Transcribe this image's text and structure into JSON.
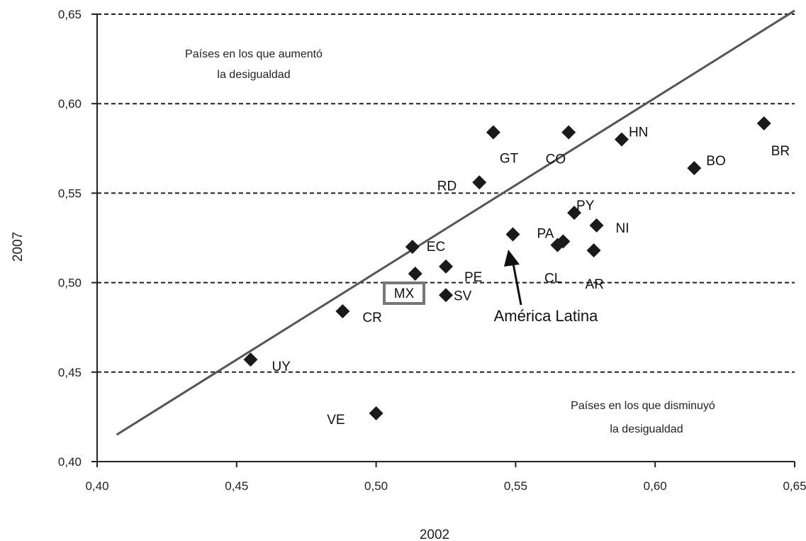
{
  "chart_data": {
    "type": "scatter",
    "xlabel": "2002",
    "ylabel": "2007",
    "xlim": [
      0.4,
      0.65
    ],
    "ylim": [
      0.4,
      0.65
    ],
    "x_ticks": [
      "0,40",
      "0,45",
      "0,50",
      "0,55",
      "0,60",
      "0,65"
    ],
    "y_ticks": [
      "0,40",
      "0,45",
      "0,50",
      "0,55",
      "0,60",
      "0,65"
    ],
    "grid": "horizontal-dashed",
    "reference_line": {
      "x": [
        0.407,
        0.65
      ],
      "y": [
        0.415,
        0.652
      ]
    },
    "points": [
      {
        "label": "UY",
        "x": 0.455,
        "y": 0.457
      },
      {
        "label": "VE",
        "x": 0.5,
        "y": 0.427
      },
      {
        "label": "CR",
        "x": 0.488,
        "y": 0.484
      },
      {
        "label": "MX",
        "x": 0.514,
        "y": 0.505,
        "boxed": true
      },
      {
        "label": "EC",
        "x": 0.513,
        "y": 0.52
      },
      {
        "label": "PE",
        "x": 0.525,
        "y": 0.509
      },
      {
        "label": "SV",
        "x": 0.525,
        "y": 0.493
      },
      {
        "label": "RD",
        "x": 0.537,
        "y": 0.556
      },
      {
        "label": "GT",
        "x": 0.542,
        "y": 0.584
      },
      {
        "label": "",
        "x": 0.549,
        "y": 0.527
      },
      {
        "label": "CO",
        "x": 0.569,
        "y": 0.584
      },
      {
        "label": "PA",
        "x": 0.565,
        "y": 0.521
      },
      {
        "label": "CL",
        "x": 0.567,
        "y": 0.523
      },
      {
        "label": "PY",
        "x": 0.571,
        "y": 0.539
      },
      {
        "label": "NI",
        "x": 0.579,
        "y": 0.532
      },
      {
        "label": "AR",
        "x": 0.578,
        "y": 0.518
      },
      {
        "label": "HN",
        "x": 0.588,
        "y": 0.58
      },
      {
        "label": "BO",
        "x": 0.614,
        "y": 0.564
      },
      {
        "label": "BR",
        "x": 0.639,
        "y": 0.589
      }
    ],
    "annotations": {
      "increase_line1": "Países en los que aumentó",
      "increase_line2": "la desigualdad",
      "decrease_line1": "Países en los que disminuyó",
      "decrease_line2": "la desigualdad",
      "arrow_label": "América Latina"
    }
  }
}
